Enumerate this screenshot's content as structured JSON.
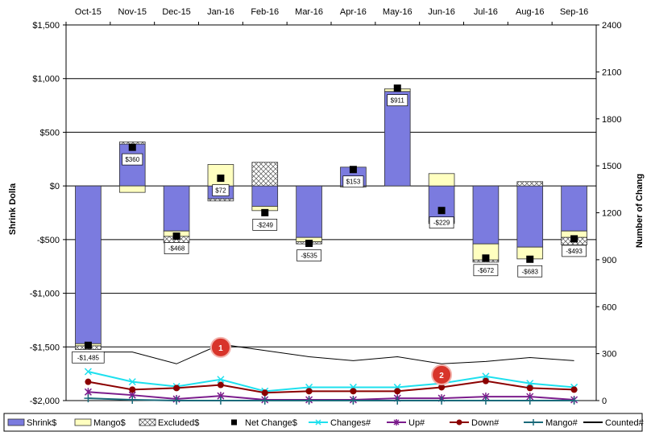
{
  "chart_data": {
    "type": "bar",
    "categories": [
      "Oct-15",
      "Nov-15",
      "Dec-15",
      "Jan-16",
      "Feb-16",
      "Mar-16",
      "Apr-16",
      "May-16",
      "Jun-16",
      "Jul-16",
      "Aug-16",
      "Sep-16"
    ],
    "y_left": {
      "label": "Shrink Dolla",
      "ylim": [
        -2000,
        1500
      ],
      "ticks": [
        1500,
        1000,
        500,
        0,
        -500,
        -1000,
        -1500,
        -2000
      ],
      "tick_labels": [
        "$1,500",
        "$1,000",
        "$500",
        "$0",
        "-$500",
        "-$1,000",
        "-$1,500",
        "-$2,000"
      ]
    },
    "y_right": {
      "label": "Number of Chang",
      "ylim": [
        0,
        2400
      ],
      "ticks": [
        0,
        300,
        600,
        900,
        1200,
        1500,
        1800,
        2100,
        2400
      ],
      "tick_labels": [
        "0",
        "300",
        "600",
        "900",
        "1200",
        "1500",
        "1800",
        "2100",
        "2400"
      ]
    },
    "bar_series": [
      {
        "name": "Shrink$",
        "color": "#7b7bdf",
        "values": [
          -1470,
          390,
          -420,
          -120,
          -190,
          -480,
          175,
          880,
          -330,
          -540,
          -570,
          -420
        ]
      },
      {
        "name": "Mango$",
        "color": "#ffffc0",
        "values": [
          -20,
          -60,
          -50,
          200,
          -40,
          -40,
          0,
          25,
          115,
          -150,
          -110,
          -60
        ]
      },
      {
        "name": "Excluded$",
        "color": "#ffffff",
        "values": [
          -35,
          20,
          -60,
          -20,
          220,
          -20,
          -10,
          0,
          -20,
          -20,
          40,
          -70
        ]
      }
    ],
    "net_change": {
      "name": "Net Change$",
      "values": [
        -1485,
        360,
        -468,
        72,
        -249,
        -535,
        153,
        911,
        -229,
        -672,
        -683,
        -493
      ],
      "labels": [
        "-$1,485",
        "$360",
        "-$468",
        "$72",
        "-$249",
        "-$535",
        "$153",
        "$911",
        "-$229",
        "-$672",
        "-$683",
        "-$493"
      ]
    },
    "line_series": [
      {
        "name": "Changes#",
        "color": "#1ee0ee",
        "marker": "x",
        "values": [
          185,
          120,
          90,
          135,
          60,
          85,
          85,
          85,
          110,
          155,
          110,
          85
        ]
      },
      {
        "name": "Up#",
        "color": "#7b1c8c",
        "marker": "asterisk",
        "values": [
          55,
          35,
          10,
          30,
          5,
          5,
          5,
          15,
          15,
          25,
          25,
          5
        ]
      },
      {
        "name": "Down#",
        "color": "#8b0000",
        "marker": "circle",
        "values": [
          120,
          70,
          80,
          100,
          50,
          60,
          60,
          60,
          85,
          125,
          80,
          70
        ]
      },
      {
        "name": "Mango#",
        "color": "#1a6a7a",
        "marker": "plus",
        "values": [
          15,
          5,
          0,
          0,
          0,
          0,
          0,
          0,
          0,
          0,
          0,
          0
        ]
      },
      {
        "name": "Counted#",
        "color": "#000000",
        "marker": "none",
        "values": [
          310,
          310,
          235,
          360,
          320,
          280,
          255,
          280,
          235,
          250,
          275,
          255
        ]
      }
    ],
    "annotations": [
      {
        "text": "1",
        "color": "#d8342a",
        "x": "Jan-16",
        "y_right": 340
      },
      {
        "text": "2",
        "color": "#d8342a",
        "x": "Jun-16",
        "y_right": 165
      }
    ],
    "grid": "horizontal",
    "legend_position": "bottom"
  }
}
